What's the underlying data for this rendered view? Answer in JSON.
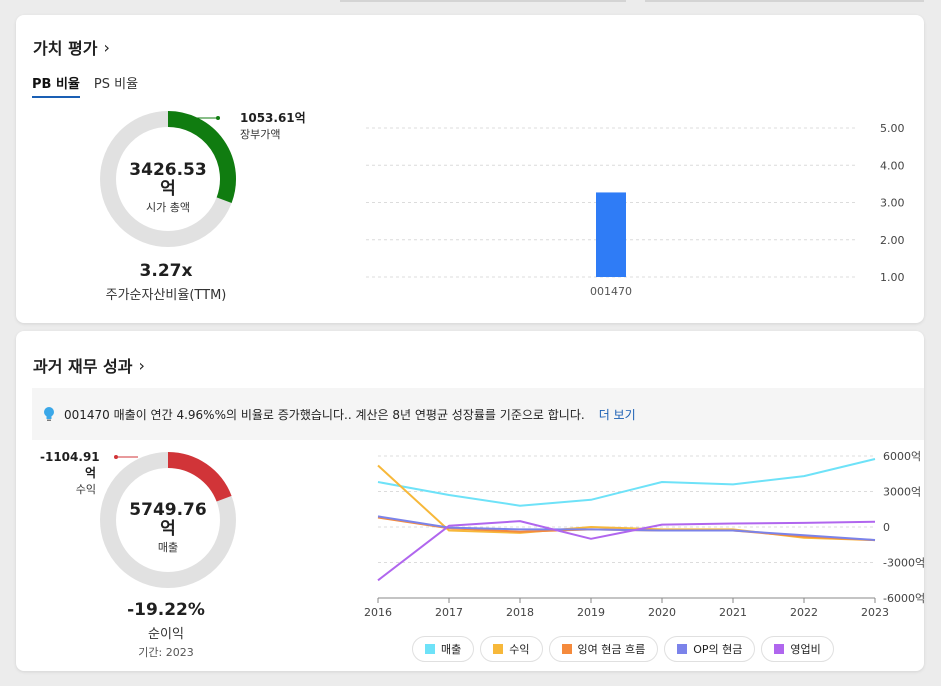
{
  "valuation": {
    "title": "가치 평가",
    "tabs": [
      {
        "label": "PB 비율",
        "active": true
      },
      {
        "label": "PS 비율",
        "active": false
      }
    ],
    "donut": {
      "center_value": "3426.53",
      "center_unit": "억",
      "center_label": "시가 총액",
      "callout_value": "1053.61억",
      "callout_label": "장부가액",
      "segment_fraction": 0.3075,
      "segment_color": "#107c10"
    },
    "metric": {
      "value": "3.27x",
      "label": "주가순자산비율(TTM)"
    }
  },
  "performance": {
    "title": "과거 재무 성과",
    "insight_text": "001470 매출이 연간 4.96%%의 비율로 증가했습니다.. 계산은 8년 연평균 성장률를 기준으로 합니다.",
    "insight_link": "더 보기",
    "donut": {
      "center_value": "5749.76",
      "center_unit": "억",
      "center_label": "매출",
      "callout_value": "-1104.91",
      "callout_unit": "억",
      "callout_label": "수익",
      "segment_fraction": 0.1922,
      "segment_color": "#d13438"
    },
    "metric": {
      "value": "-19.22%",
      "label": "순이익",
      "period": "기간: 2023"
    }
  },
  "chart_data": [
    {
      "type": "bar",
      "categories": [
        "001470"
      ],
      "values": [
        3.27
      ],
      "color": "#2f7cf6",
      "yticks": [
        "5.00",
        "4.00",
        "3.00",
        "2.00",
        "1.00"
      ],
      "ylim": [
        1,
        5
      ],
      "grid": true
    },
    {
      "type": "line",
      "x": [
        "2016",
        "2017",
        "2018",
        "2019",
        "2020",
        "2021",
        "2022",
        "2023"
      ],
      "yticks": [
        "6000억",
        "3000억",
        "0",
        "-3000억",
        "-6000억"
      ],
      "ylim": [
        -6000,
        6000
      ],
      "grid": true,
      "legend_position": "bottom",
      "series": [
        {
          "name": "매출",
          "color": "#6ee2f8",
          "values": [
            3800,
            2700,
            1800,
            2300,
            3800,
            3600,
            4300,
            5750
          ]
        },
        {
          "name": "수익",
          "color": "#f7b83a",
          "values": [
            5200,
            -300,
            -500,
            0,
            -200,
            -200,
            -900,
            -1105
          ]
        },
        {
          "name": "잉여 현금 흐름",
          "color": "#f58a3c",
          "values": [
            800,
            -100,
            -400,
            -200,
            -300,
            -300,
            -800,
            -1105
          ]
        },
        {
          "name": "OP의 현금",
          "color": "#7b83ea",
          "values": [
            900,
            -50,
            -200,
            -200,
            -300,
            -300,
            -700,
            -1100
          ]
        },
        {
          "name": "영업비",
          "color": "#b066ee",
          "values": [
            -4500,
            100,
            500,
            -1000,
            200,
            300,
            350,
            450
          ]
        }
      ]
    }
  ]
}
